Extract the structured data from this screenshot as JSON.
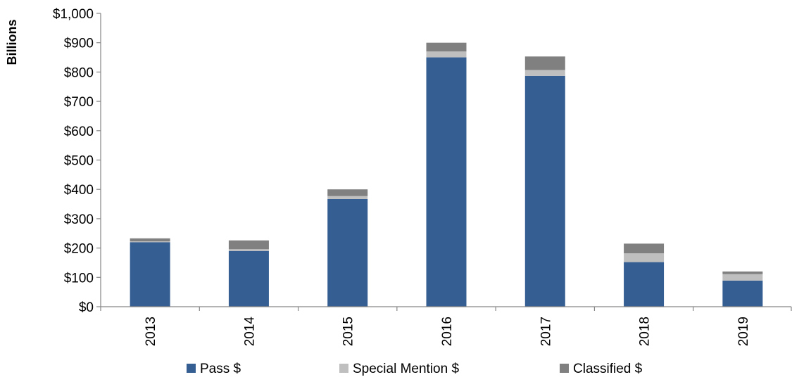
{
  "chart_data": {
    "type": "bar",
    "stacked": true,
    "title": "",
    "xlabel": "",
    "ylabel": "Billions",
    "ylim": [
      0,
      1000
    ],
    "y_ticks": [
      0,
      100,
      200,
      300,
      400,
      500,
      600,
      700,
      800,
      900,
      1000
    ],
    "y_tick_labels": [
      "$0",
      "$100",
      "$200",
      "$300",
      "$400",
      "$500",
      "$600",
      "$700",
      "$800",
      "$900",
      "$1,000"
    ],
    "categories": [
      "2013",
      "2014",
      "2015",
      "2016",
      "2017",
      "2018",
      "2019"
    ],
    "series": [
      {
        "name": "Pass $",
        "color": "#355E92",
        "values": [
          220,
          190,
          367,
          850,
          787,
          152,
          89
        ]
      },
      {
        "name": "Special Mention $",
        "color": "#BFBFBF",
        "values": [
          3,
          6,
          10,
          20,
          20,
          30,
          22
        ]
      },
      {
        "name": "Classified $",
        "color": "#808080",
        "values": [
          10,
          30,
          23,
          30,
          46,
          33,
          9
        ]
      }
    ],
    "grid": false,
    "legend_position": "bottom",
    "x_tick_rotation": "vertical"
  }
}
